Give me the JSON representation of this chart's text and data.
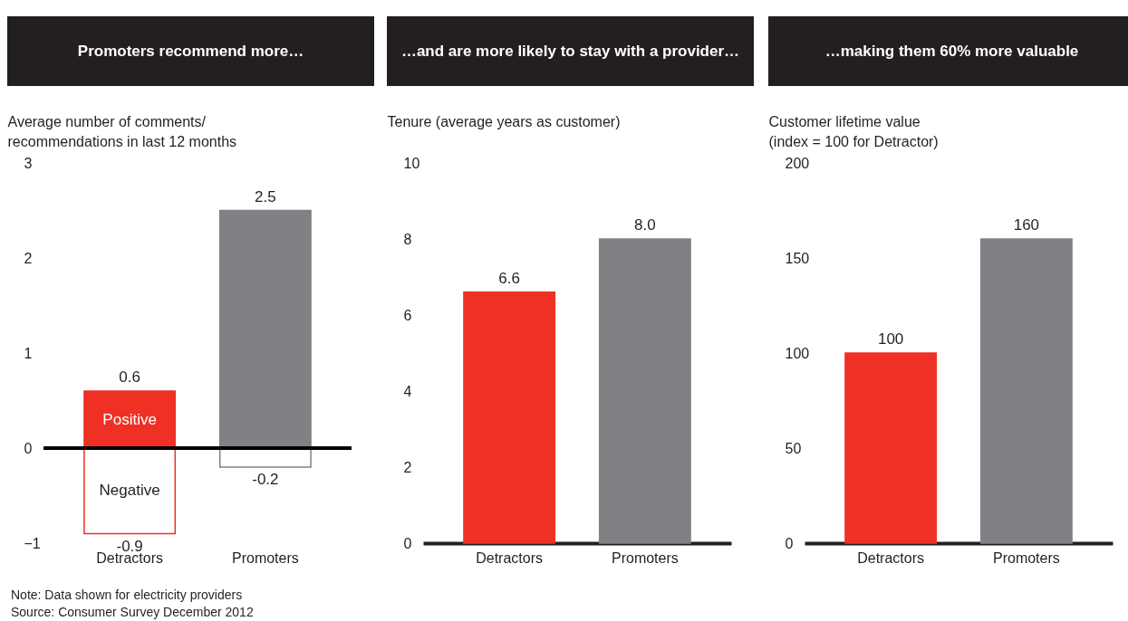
{
  "chart_data": [
    {
      "type": "bar",
      "title": "Promoters recommend more…",
      "ylabel": "Average number of comments/\nrecommendations in last 12 months",
      "categories": [
        "Detractors",
        "Promoters"
      ],
      "stacked": true,
      "series": [
        {
          "name": "Positive",
          "colors": [
            "#ee3124",
            "#818185"
          ],
          "values": [
            0.6,
            2.5
          ]
        },
        {
          "name": "Negative",
          "colors": [
            "#ee3124",
            "#818185"
          ],
          "values": [
            -0.9,
            -0.2
          ]
        }
      ],
      "ylim": [
        -1,
        3
      ],
      "yticks": [
        -1,
        0,
        1,
        2,
        3
      ],
      "data_labels": true,
      "ref_lines": [
        {
          "axis": "y",
          "value": 0,
          "color": "#000000"
        }
      ],
      "annotations": [
        "Note: Data shown for electricity providers",
        "Source: Consumer Survey December 2012"
      ]
    },
    {
      "type": "bar",
      "title": "…and are more likely to stay with a provider…",
      "ylabel": "Tenure (average years as customer)",
      "categories": [
        "Detractors",
        "Promoters"
      ],
      "values": [
        6.6,
        8.0
      ],
      "colors": [
        "#ee3124",
        "#818185"
      ],
      "value_labels": [
        "6.6",
        "8.0"
      ],
      "ylim": [
        0,
        10
      ],
      "yticks": [
        0,
        2,
        4,
        6,
        8,
        10
      ]
    },
    {
      "type": "bar",
      "title": "…making them 60% more valuable",
      "ylabel": "Customer lifetime value\n(index = 100 for Detractor)",
      "categories": [
        "Detractors",
        "Promoters"
      ],
      "values": [
        100,
        160
      ],
      "colors": [
        "#ee3124",
        "#818185"
      ],
      "data_labels": true,
      "ylim": [
        0,
        200
      ],
      "yticks": [
        0,
        50,
        100,
        150,
        200
      ]
    }
  ]
}
